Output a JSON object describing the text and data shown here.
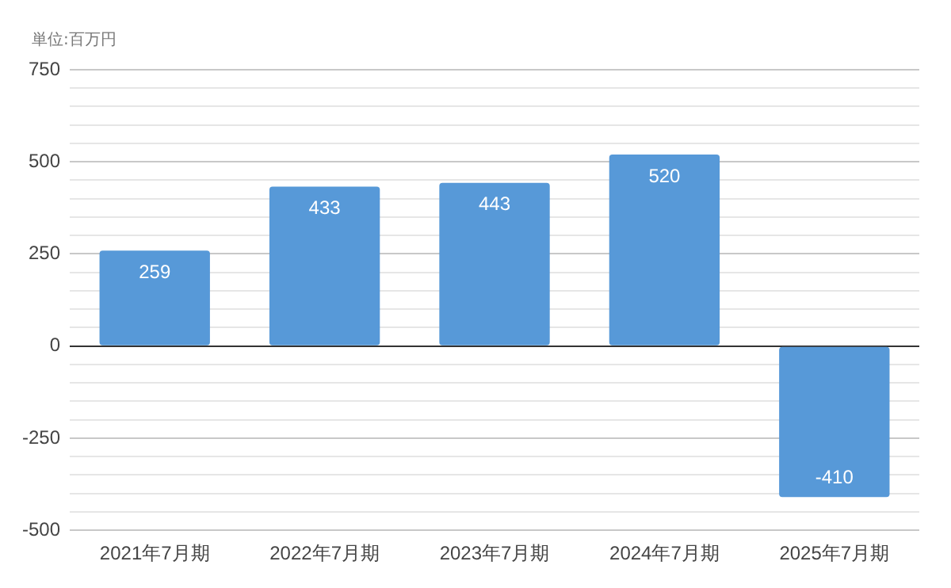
{
  "chart_data": {
    "type": "bar",
    "ylabel": "単位:百万円",
    "categories": [
      "2021年7月期",
      "2022年7月期",
      "2023年7月期",
      "2024年7月期",
      "2025年7月期"
    ],
    "values": [
      259,
      433,
      443,
      520,
      -410
    ],
    "color": "#5799d8",
    "ylim": [
      -500,
      750
    ],
    "yticks": [
      -500,
      {
        "value": -450,
        "label": null
      },
      {
        "value": -400,
        "label": null
      },
      {
        "value": -350,
        "label": null
      },
      {
        "value": -300,
        "label": null
      },
      -250,
      {
        "value": -200,
        "label": null
      },
      {
        "value": -150,
        "label": null
      },
      {
        "value": -100,
        "label": null
      },
      {
        "value": -50,
        "label": null
      },
      0,
      {
        "value": 50,
        "label": null
      },
      {
        "value": 100,
        "label": null
      },
      {
        "value": 150,
        "label": null
      },
      {
        "value": 200,
        "label": null
      },
      250,
      {
        "value": 300,
        "label": null
      },
      {
        "value": 350,
        "label": null
      },
      {
        "value": 400,
        "label": null
      },
      {
        "value": 450,
        "label": null
      },
      500,
      {
        "value": 550,
        "label": null
      },
      {
        "value": 600,
        "label": null
      },
      {
        "value": 650,
        "label": null
      },
      {
        "value": 700,
        "label": null
      },
      750
    ],
    "grid": "y",
    "data_labels": true,
    "legend": false
  }
}
